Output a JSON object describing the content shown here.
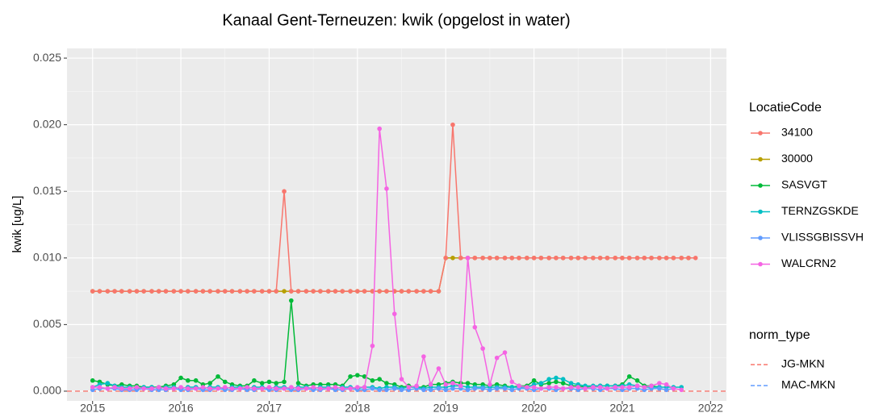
{
  "chart_data": {
    "type": "line",
    "title": "Kanaal Gent-Terneuzen: kwik (opgelost in water)",
    "y_label": "kwik [ug/L]",
    "legend_title": "LocatieCode",
    "legend_position": "right",
    "grid": true,
    "xlim": [
      2014.71,
      2022.18
    ],
    "xticks": [
      2015,
      2016,
      2017,
      2018,
      2019,
      2020,
      2021,
      2022
    ],
    "ylim": [
      -0.00073,
      0.02573
    ],
    "yticks": [
      {
        "value": 0,
        "label": "0.000"
      },
      {
        "value": 0.005,
        "label": "0.005"
      },
      {
        "value": 0.01,
        "label": "0.010"
      },
      {
        "value": 0.015,
        "label": "0.015"
      },
      {
        "value": 0.02,
        "label": "0.020"
      },
      {
        "value": 0.025,
        "label": "0.025"
      }
    ],
    "x": [
      2015,
      2015.08,
      2015.17,
      2015.25,
      2015.33,
      2015.42,
      2015.5,
      2015.58,
      2015.67,
      2015.75,
      2015.83,
      2015.92,
      2016,
      2016.08,
      2016.17,
      2016.25,
      2016.33,
      2016.42,
      2016.5,
      2016.58,
      2016.67,
      2016.75,
      2016.83,
      2016.92,
      2017,
      2017.08,
      2017.17,
      2017.25,
      2017.33,
      2017.42,
      2017.5,
      2017.58,
      2017.67,
      2017.75,
      2017.83,
      2017.92,
      2018,
      2018.08,
      2018.17,
      2018.25,
      2018.33,
      2018.42,
      2018.5,
      2018.58,
      2018.67,
      2018.75,
      2018.83,
      2018.92,
      2019,
      2019.08,
      2019.17,
      2019.25,
      2019.33,
      2019.42,
      2019.5,
      2019.58,
      2019.67,
      2019.75,
      2019.83,
      2019.92,
      2020,
      2020.08,
      2020.17,
      2020.25,
      2020.33,
      2020.42,
      2020.5,
      2020.58,
      2020.67,
      2020.75,
      2020.83,
      2020.92,
      2021,
      2021.08,
      2021.17,
      2021.25,
      2021.33,
      2021.42,
      2021.5,
      2021.58,
      2021.67,
      2021.75,
      2021.83,
      2021.92
    ],
    "series": [
      {
        "name": "34100",
        "color": "#F8766D",
        "values": [
          0.0075,
          0.0075,
          0.0075,
          0.0075,
          0.0075,
          0.0075,
          0.0075,
          0.0075,
          0.0075,
          0.0075,
          0.0075,
          0.0075,
          0.0075,
          0.0075,
          0.0075,
          0.0075,
          0.0075,
          0.0075,
          0.0075,
          0.0075,
          0.0075,
          0.0075,
          0.0075,
          0.0075,
          0.0075,
          0.0075,
          0.015,
          0.0075,
          0.0075,
          0.0075,
          0.0075,
          0.0075,
          0.0075,
          0.0075,
          0.0075,
          0.0075,
          0.0075,
          0.0075,
          0.0075,
          0.0075,
          0.0075,
          0.0075,
          0.0075,
          0.0075,
          0.0075,
          0.0075,
          0.0075,
          0.0075,
          0.01,
          0.02,
          0.01,
          0.01,
          0.01,
          0.01,
          0.01,
          0.01,
          0.01,
          0.01,
          0.01,
          0.01,
          0.01,
          0.01,
          0.01,
          0.01,
          0.01,
          0.01,
          0.01,
          0.01,
          0.01,
          0.01,
          0.01,
          0.01,
          0.01,
          0.01,
          0.01,
          0.01,
          0.01,
          0.01,
          0.01,
          0.01,
          0.01,
          0.01,
          0.01,
          null
        ]
      },
      {
        "name": "30000",
        "color": "#B79F00",
        "values": [
          0.0075,
          0.0075,
          0.0075,
          0.0075,
          0.0075,
          0.0075,
          0.0075,
          0.0075,
          0.0075,
          0.0075,
          0.0075,
          0.0075,
          0.0075,
          0.0075,
          0.0075,
          0.0075,
          0.0075,
          0.0075,
          0.0075,
          0.0075,
          0.0075,
          0.0075,
          0.0075,
          0.0075,
          0.0075,
          0.0075,
          0.0075,
          0.0075,
          0.0075,
          0.0075,
          0.0075,
          0.0075,
          0.0075,
          0.0075,
          0.0075,
          0.0075,
          0.0075,
          0.0075,
          0.0075,
          0.0075,
          0.0075,
          0.0075,
          0.0075,
          0.0075,
          0.0075,
          0.0075,
          0.0075,
          0.0075,
          0.01,
          0.01,
          0.01,
          0.01,
          0.01,
          0.01,
          0.01,
          0.01,
          0.01,
          0.01,
          0.01,
          0.01,
          0.01,
          0.01,
          0.01,
          0.01,
          0.01,
          0.01,
          0.01,
          0.01,
          0.01,
          0.01,
          0.01,
          0.01,
          0.01,
          0.01,
          0.01,
          0.01,
          0.01,
          0.01,
          0.01,
          0.01,
          0.01,
          0.01,
          null,
          null
        ]
      },
      {
        "name": "SASVGT",
        "color": "#00BA38",
        "values": [
          0.0008,
          0.0007,
          0.0005,
          0.0004,
          0.0005,
          0.0004,
          0.0004,
          0.0003,
          0.0003,
          0.0003,
          0.0004,
          0.0005,
          0.001,
          0.0008,
          0.0008,
          0.0005,
          0.0006,
          0.0011,
          0.0007,
          0.0005,
          0.0004,
          0.0004,
          0.0008,
          0.0006,
          0.0007,
          0.0006,
          0.0007,
          0.0068,
          0.0006,
          0.0004,
          0.0005,
          0.0005,
          0.0005,
          0.0005,
          0.0004,
          0.0011,
          0.0012,
          0.0011,
          0.0008,
          0.0009,
          0.0006,
          0.0005,
          0.0003,
          0.0004,
          0.0003,
          0.0003,
          0.0005,
          0.0005,
          0.0006,
          0.0007,
          0.0006,
          0.0006,
          0.0005,
          0.0005,
          0.0004,
          0.0005,
          0.0004,
          0.0003,
          0.0004,
          0.0004,
          0.0008,
          0.0005,
          0.0006,
          0.0007,
          0.0006,
          0.0004,
          0.0004,
          0.0003,
          0.0003,
          0.0004,
          0.0004,
          0.0004,
          0.0005,
          0.0011,
          0.0008,
          0.0004,
          0.0004,
          0.0003,
          null,
          null,
          null,
          null,
          null,
          null
        ]
      },
      {
        "name": "TERNZGSKDE",
        "color": "#00BFC4",
        "values": [
          0.0003,
          0.0005,
          0.0006,
          0.0004,
          0.0003,
          0.0003,
          0.0002,
          0.0003,
          0.0003,
          0.0002,
          0.0003,
          0.0003,
          0.0002,
          0.0003,
          0.0003,
          0.0002,
          0.0003,
          0.0003,
          0.0002,
          0.0003,
          0.0003,
          0.0002,
          0.0003,
          0.0003,
          0.0002,
          0.0003,
          0.0003,
          0.0002,
          0.0003,
          0.0003,
          0.0002,
          0.0003,
          0.0003,
          0.0002,
          0.0003,
          0.0003,
          0.0002,
          0.0003,
          0.0003,
          0.0002,
          0.0003,
          0.0003,
          0.0002,
          0.0003,
          0.0003,
          0.0002,
          0.0003,
          0.0003,
          0.0003,
          0.0004,
          0.0004,
          0.0003,
          0.0003,
          0.0003,
          0.0003,
          0.0003,
          0.0003,
          0.0003,
          0.0003,
          0.0003,
          0.0005,
          0.0006,
          0.0009,
          0.001,
          0.0009,
          0.0006,
          0.0005,
          0.0004,
          0.0004,
          0.0004,
          0.0004,
          0.0004,
          0.0004,
          0.0005,
          0.0004,
          0.0003,
          0.0003,
          0.0003,
          0.0003,
          0.0003,
          0.0003,
          null,
          null,
          null
        ]
      },
      {
        "name": "VLISSGBISSVH",
        "color": "#619CFF",
        "values": [
          0.0001,
          0.0002,
          0.0002,
          0.0002,
          0.0001,
          0.0001,
          0.0001,
          0.0002,
          0.0001,
          0.0001,
          0.0001,
          0.0002,
          0.0001,
          0.0001,
          0.0002,
          0.0001,
          0.0001,
          0.0002,
          0.0001,
          0.0001,
          0.0002,
          0.0001,
          0.0001,
          0.0002,
          0.0001,
          0.0001,
          0.0002,
          0.0001,
          0.0001,
          0.0002,
          0.0001,
          0.0001,
          0.0002,
          0.0001,
          0.0001,
          0.0002,
          0.0001,
          0.0001,
          0.0002,
          0.0001,
          0.0001,
          0.0002,
          0.0001,
          0.0001,
          0.0002,
          0.0001,
          0.0001,
          0.0002,
          0.0001,
          0.0002,
          0.0002,
          0.0001,
          0.0002,
          0.0002,
          0.0001,
          0.0002,
          0.0002,
          0.0001,
          0.0002,
          0.0002,
          0.0001,
          0.0002,
          0.0002,
          0.0001,
          0.0002,
          0.0002,
          0.0001,
          0.0002,
          0.0002,
          0.0001,
          0.0002,
          0.0002,
          0.0001,
          0.0002,
          0.0002,
          0.0001,
          0.0002,
          0.0002,
          0.0001,
          0.0002,
          null,
          null,
          null,
          null
        ]
      },
      {
        "name": "WALCRN2",
        "color": "#F564E3",
        "values": [
          0.0003,
          0.0003,
          0.0002,
          0.0003,
          0.0002,
          0.0002,
          0.0003,
          0.0002,
          0.0002,
          0.0003,
          0.0002,
          0.0002,
          0.0003,
          0.0002,
          0.0002,
          0.0003,
          0.0002,
          0.0002,
          0.0003,
          0.0002,
          0.0002,
          0.0003,
          0.0002,
          0.0002,
          0.0003,
          0.0002,
          0.0002,
          0.0003,
          0.0002,
          0.0002,
          0.0003,
          0.0002,
          0.0002,
          0.0003,
          0.0002,
          0.0002,
          0.0003,
          0.0003,
          0.0034,
          0.0197,
          0.0152,
          0.0058,
          0.0009,
          0.0003,
          0.0004,
          0.0026,
          0.0005,
          0.0017,
          0.0005,
          0.0006,
          0.0004,
          0.01,
          0.0048,
          0.0032,
          0.0005,
          0.0025,
          0.0029,
          0.0007,
          0.0004,
          0.0003,
          0.0003,
          0.0002,
          0.0003,
          0.0003,
          0.0002,
          0.0003,
          0.0003,
          0.0002,
          0.0003,
          0.0003,
          0.0002,
          0.0003,
          0.0003,
          0.0003,
          0.0004,
          0.0003,
          0.0004,
          0.0006,
          0.0005,
          0.0002,
          0.0001,
          null,
          null,
          null
        ]
      }
    ],
    "norm_legend_title": "norm_type",
    "norms": [
      {
        "name": "JG-MKN",
        "color": "#F8766D",
        "value": 0
      },
      {
        "name": "MAC-MKN",
        "color": "#619CFF"
      }
    ]
  }
}
